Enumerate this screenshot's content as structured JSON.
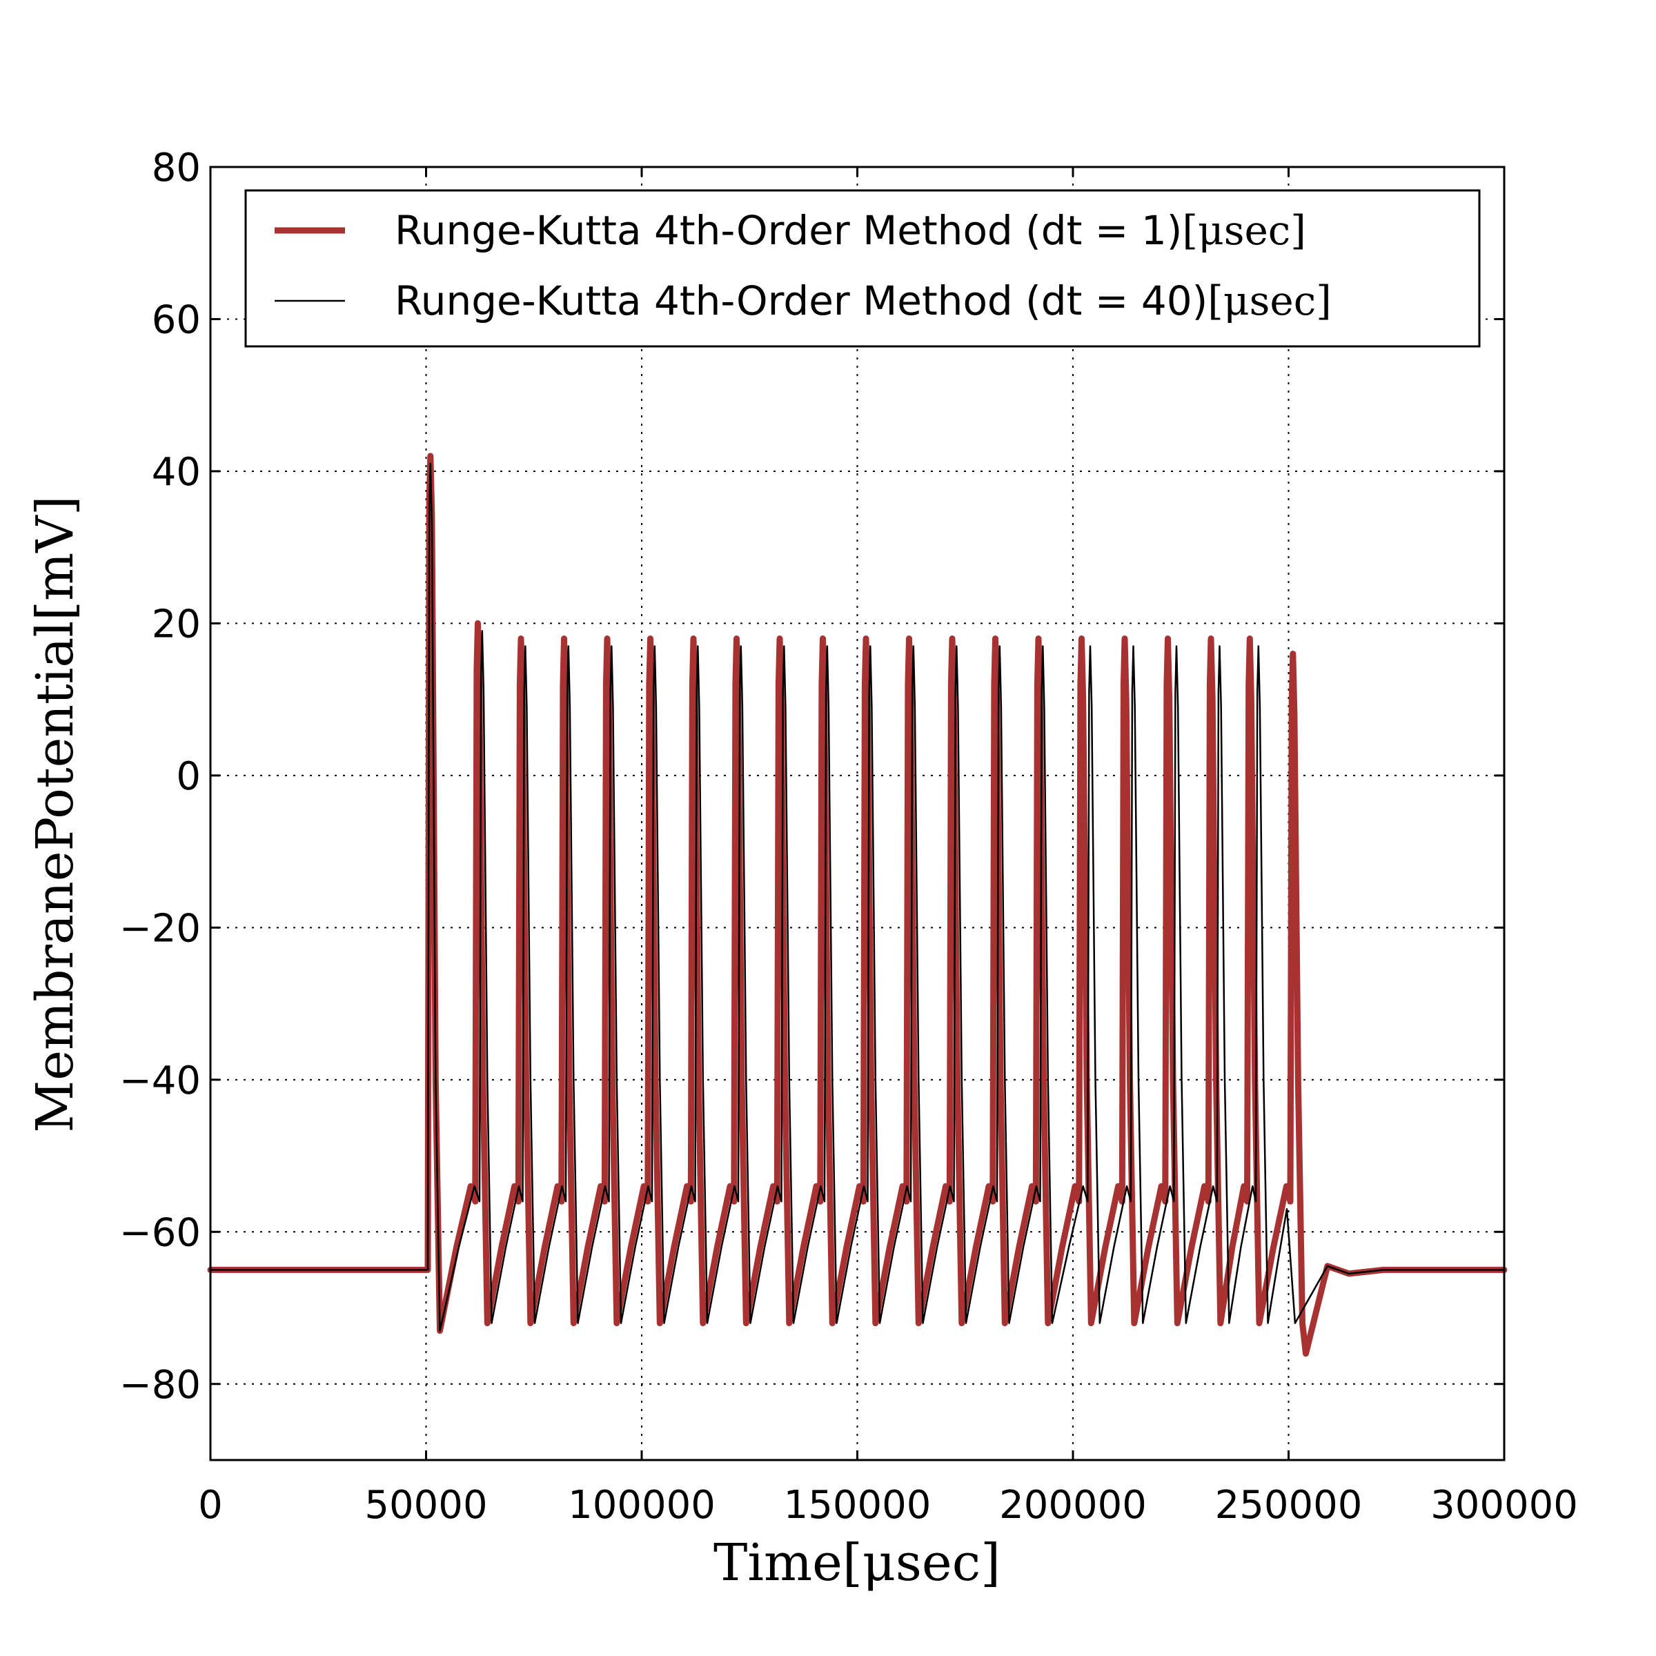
{
  "chart_data": {
    "type": "line",
    "title": "",
    "xlabel": "Time[μsec]",
    "ylabel": "MembranePotential[mV]",
    "xlim": [
      0,
      300000
    ],
    "ylim": [
      -90,
      80
    ],
    "xticks": [
      0,
      50000,
      100000,
      150000,
      200000,
      250000,
      300000
    ],
    "xtick_labels": [
      "0",
      "50000",
      "100000",
      "150000",
      "200000",
      "250000",
      "300000"
    ],
    "yticks": [
      -80,
      -60,
      -40,
      -20,
      0,
      20,
      40,
      60,
      80
    ],
    "ytick_labels": [
      "−80",
      "−60",
      "−40",
      "−20",
      "0",
      "20",
      "40",
      "60",
      "80"
    ],
    "grid": true,
    "legend_position": "top",
    "resting_potential": -65,
    "stimulus_window": [
      50000,
      250000
    ],
    "series": [
      {
        "name": "Runge-Kutta 4th-Order Method (dt = 1)",
        "unit": "[μsec]",
        "color": "#a83232",
        "linewidth": 9,
        "spike_times": [
          51000,
          62000,
          72000,
          82000,
          92000,
          102000,
          112000,
          122000,
          132000,
          142000,
          152000,
          162000,
          172000,
          182000,
          192000,
          202000,
          212000,
          222000,
          232000,
          241000,
          251000
        ],
        "spike_peaks": [
          42,
          20,
          18,
          18,
          18,
          18,
          18,
          18,
          18,
          18,
          18,
          18,
          18,
          18,
          18,
          18,
          18,
          18,
          18,
          18,
          16
        ],
        "trough": -72,
        "final_undershoot": -76
      },
      {
        "name": "Runge-Kutta 4th-Order Method (dt = 40)",
        "unit": "[μsec]",
        "color": "#000000",
        "linewidth": 2.5,
        "spike_times": [
          51000,
          63000,
          73000,
          83000,
          93000,
          103000,
          113000,
          123000,
          133000,
          143000,
          153000,
          163000,
          173000,
          183000,
          193000,
          204000,
          214000,
          224000,
          234000,
          243000
        ],
        "spike_peaks": [
          41,
          19,
          17,
          17,
          17,
          17,
          17,
          17,
          17,
          17,
          17,
          17,
          17,
          17,
          17,
          17,
          17,
          17,
          17,
          17
        ],
        "trough": -72,
        "final_undershoot": -72
      }
    ]
  }
}
